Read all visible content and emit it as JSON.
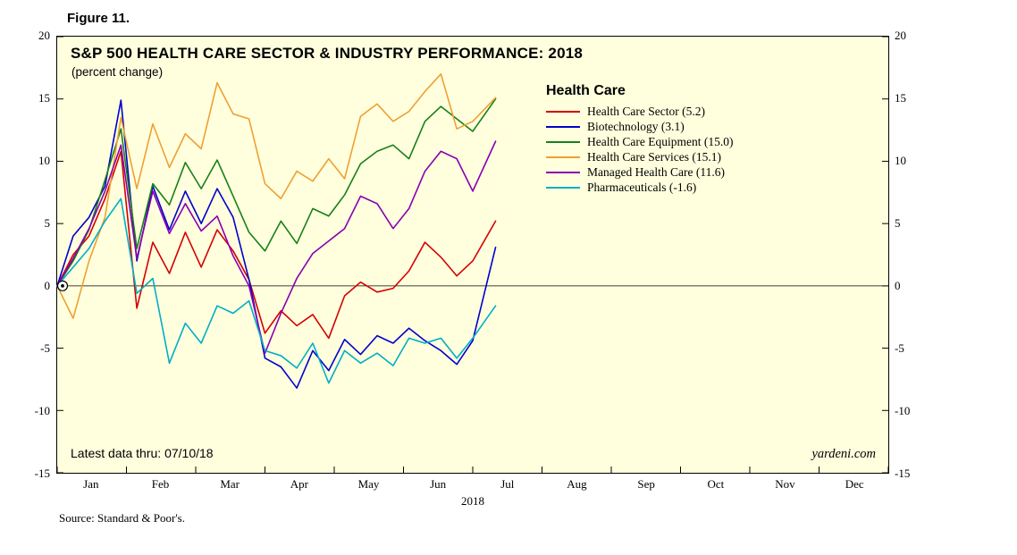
{
  "figure_label": "Figure 11.",
  "title": "S&P 500 HEALTH CARE SECTOR & INDUSTRY PERFORMANCE: 2018",
  "subtitle": "(percent change)",
  "legend_title": "Health Care",
  "footnote": "Latest data thru: 07/10/18",
  "watermark": "yardeni.com",
  "source": "Source: Standard & Poor's.",
  "year_label": "2018",
  "chart_data": {
    "type": "line",
    "title": "S&P 500 HEALTH CARE SECTOR & INDUSTRY PERFORMANCE: 2018",
    "ylabel": "percent change",
    "background": "#ffffde",
    "ylim": [
      -15,
      20
    ],
    "xlim_months": [
      0,
      12
    ],
    "y_ticks": [
      20,
      15,
      10,
      5,
      0,
      -5,
      -10,
      -15
    ],
    "x_ticks": [
      "Jan",
      "Feb",
      "Mar",
      "Apr",
      "May",
      "Jun",
      "Jul",
      "Aug",
      "Sep",
      "Oct",
      "Nov",
      "Dec"
    ],
    "x_unit": "months from Jan 1, 2018",
    "x": [
      0,
      0.23,
      0.46,
      0.69,
      0.92,
      1.15,
      1.38,
      1.62,
      1.85,
      2.08,
      2.31,
      2.54,
      2.77,
      3.0,
      3.23,
      3.46,
      3.69,
      3.92,
      4.15,
      4.38,
      4.62,
      4.85,
      5.08,
      5.31,
      5.54,
      5.77,
      6.0,
      6.33
    ],
    "series": [
      {
        "name": "Health Care Sector (5.2)",
        "final_value": 5.2,
        "color": "#d40000",
        "values": [
          0,
          2.5,
          4.0,
          7.0,
          10.8,
          -1.8,
          3.5,
          1.0,
          4.3,
          1.5,
          4.5,
          2.8,
          0.5,
          -3.8,
          -2.0,
          -3.2,
          -2.3,
          -4.2,
          -0.8,
          0.3,
          -0.5,
          -0.2,
          1.2,
          3.5,
          2.3,
          0.8,
          2.0,
          5.2
        ]
      },
      {
        "name": "Biotechnology (3.1)",
        "final_value": 3.1,
        "color": "#0000cd",
        "values": [
          0,
          4.0,
          5.5,
          8.0,
          14.9,
          2.0,
          8.0,
          4.5,
          7.6,
          5.0,
          7.8,
          5.5,
          0.5,
          -5.8,
          -6.5,
          -8.2,
          -5.2,
          -6.8,
          -4.3,
          -5.5,
          -4.0,
          -4.6,
          -3.4,
          -4.4,
          -5.2,
          -6.3,
          -4.4,
          3.1
        ]
      },
      {
        "name": "Health Care Equipment (15.0)",
        "final_value": 15.0,
        "color": "#188018",
        "values": [
          0,
          2.0,
          4.5,
          8.5,
          12.6,
          3.0,
          8.2,
          6.5,
          9.9,
          7.8,
          10.1,
          7.2,
          4.3,
          2.8,
          5.2,
          3.4,
          6.2,
          5.6,
          7.3,
          9.8,
          10.8,
          11.3,
          10.2,
          13.2,
          14.4,
          13.4,
          12.4,
          15.0
        ]
      },
      {
        "name": "Health Care Services (15.1)",
        "final_value": 15.1,
        "color": "#efa033",
        "values": [
          0,
          -2.6,
          2.0,
          5.5,
          13.5,
          7.8,
          13.0,
          9.5,
          12.2,
          11.0,
          16.3,
          13.8,
          13.4,
          8.2,
          7.0,
          9.2,
          8.4,
          10.2,
          8.6,
          13.6,
          14.6,
          13.2,
          14.0,
          15.6,
          17.0,
          12.6,
          13.2,
          15.1
        ]
      },
      {
        "name": "Managed Health Care (11.6)",
        "final_value": 11.6,
        "color": "#8800b0",
        "values": [
          0,
          2.2,
          4.6,
          7.6,
          11.3,
          2.2,
          7.6,
          4.2,
          6.6,
          4.4,
          5.6,
          2.4,
          0.0,
          -5.4,
          -2.2,
          0.6,
          2.6,
          3.6,
          4.6,
          7.2,
          6.6,
          4.6,
          6.2,
          9.2,
          10.8,
          10.2,
          7.6,
          11.6
        ]
      },
      {
        "name": "Pharmaceuticals (-1.6)",
        "final_value": -1.6,
        "color": "#00aec4",
        "values": [
          0,
          1.5,
          3.0,
          5.2,
          7.0,
          -0.6,
          0.6,
          -6.2,
          -3.0,
          -4.6,
          -1.6,
          -2.2,
          -1.2,
          -5.2,
          -5.6,
          -6.6,
          -4.6,
          -7.8,
          -5.2,
          -6.2,
          -5.4,
          -6.4,
          -4.2,
          -4.6,
          -4.2,
          -5.8,
          -4.2,
          -1.6
        ]
      }
    ]
  }
}
